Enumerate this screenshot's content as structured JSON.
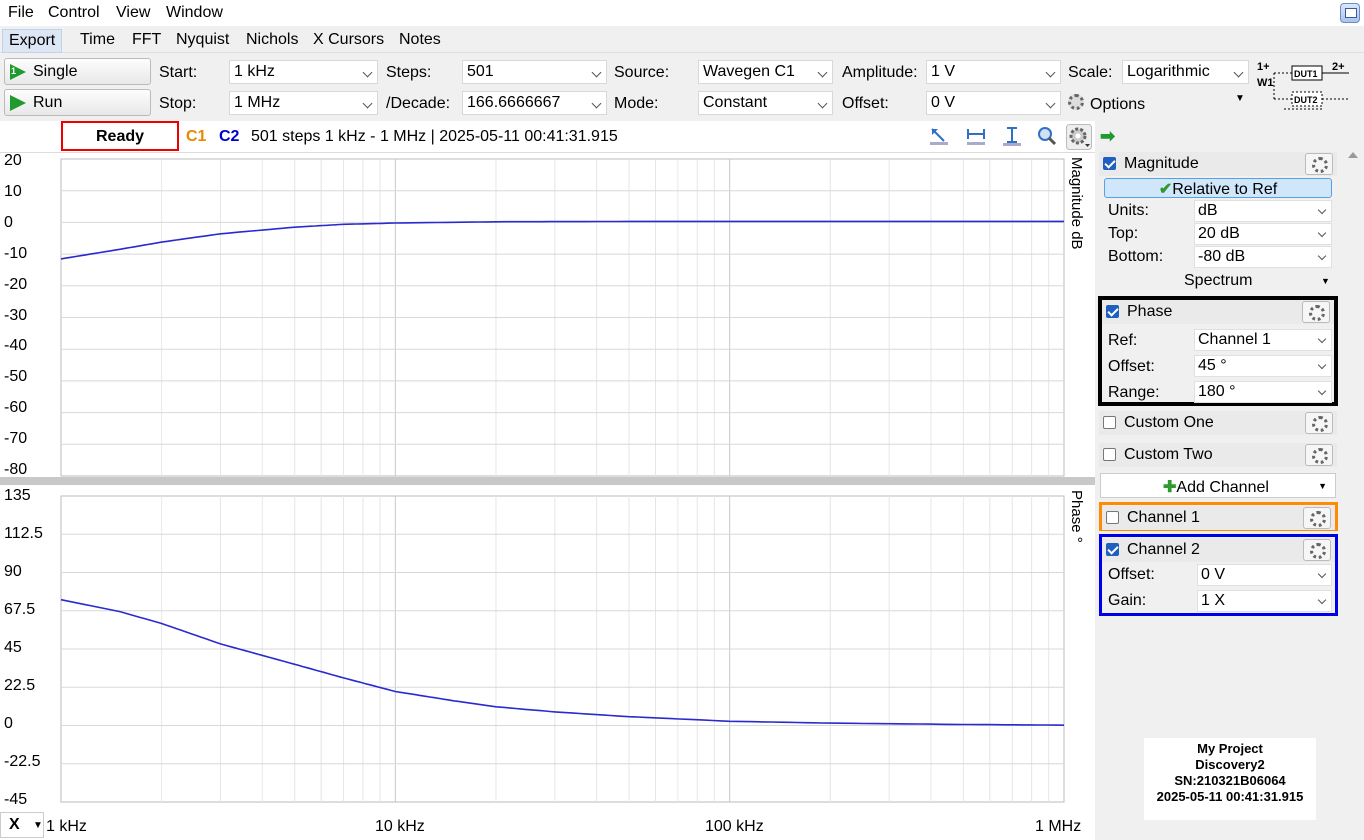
{
  "menubar": {
    "items": [
      "File",
      "Control",
      "View",
      "Window"
    ]
  },
  "tabs": [
    "Export",
    "Time",
    "FFT",
    "Nyquist",
    "Nichols",
    "X Cursors",
    "Notes"
  ],
  "toolbar": {
    "single_label": "Single",
    "run_label": "Run",
    "start_label": "Start:",
    "start_value": "1 kHz",
    "stop_label": "Stop:",
    "stop_value": "1 MHz",
    "steps_label": "Steps:",
    "steps_value": "501",
    "decade_label": "/Decade:",
    "decade_value": "166.6666667",
    "source_label": "Source:",
    "source_value": "Wavegen C1",
    "mode_label": "Mode:",
    "mode_value": "Constant",
    "amplitude_label": "Amplitude:",
    "amplitude_value": "1 V",
    "offset_label": "Offset:",
    "offset_value": "0 V",
    "scale_label": "Scale:",
    "scale_value": "Logarithmic",
    "options_label": "Options",
    "dut": {
      "in": "1+",
      "w": "W1",
      "out": "2+",
      "dut1": "DUT1",
      "dut2": "DUT2"
    }
  },
  "status": {
    "state": "Ready",
    "c1": "C1",
    "c2": "C2",
    "info": "501 steps  1 kHz - 1 MHz | 2025-05-11 00:41:31.915"
  },
  "magnitude_plot": {
    "ylabel": "Magnitude  dB",
    "yticks": [
      "20",
      "10",
      "0",
      "-10",
      "-20",
      "-30",
      "-40",
      "-50",
      "-60",
      "-70",
      "-80"
    ]
  },
  "phase_plot": {
    "ylabel": "Phase  °",
    "yticks": [
      "135",
      "112.5",
      "90",
      "67.5",
      "45",
      "22.5",
      "0",
      "-22.5",
      "-45"
    ]
  },
  "xaxis": {
    "selector": "X",
    "ticks": [
      "1 kHz",
      "10 kHz",
      "100 kHz",
      "1 MHz"
    ]
  },
  "chart_data": [
    {
      "type": "line",
      "xscale": "log",
      "x": [
        1000,
        1500,
        2000,
        3000,
        5000,
        7000,
        10000,
        20000,
        50000,
        100000,
        1000000
      ],
      "series": [
        {
          "values": [
            -11.5,
            -8.5,
            -6.2,
            -3.6,
            -1.5,
            -0.6,
            -0.2,
            0.2,
            0.3,
            0.3,
            0.3
          ]
        }
      ],
      "xlim": [
        1000,
        1000000
      ],
      "ylim": [
        -80,
        20
      ],
      "grid": true,
      "color": "#2a2acf"
    },
    {
      "type": "line",
      "xscale": "log",
      "x": [
        1000,
        1500,
        2000,
        3000,
        5000,
        7000,
        10000,
        15000,
        20000,
        30000,
        50000,
        100000,
        200000,
        500000,
        1000000
      ],
      "series": [
        {
          "values": [
            74,
            67,
            60,
            48,
            36,
            28,
            20,
            14.5,
            11,
            8,
            5.2,
            2.5,
            1.4,
            0.6,
            0.2
          ]
        }
      ],
      "xlim": [
        1000,
        1000000
      ],
      "ylim": [
        -45,
        135
      ],
      "grid": true,
      "color": "#2a2acf"
    }
  ],
  "panel": {
    "magnitude": {
      "title": "Magnitude",
      "relative_label": "Relative to Ref",
      "units_label": "Units:",
      "units_value": "dB",
      "top_label": "Top:",
      "top_value": "20 dB",
      "bottom_label": "Bottom:",
      "bottom_value": "-80 dB",
      "spectrum_label": "Spectrum"
    },
    "phase": {
      "title": "Phase",
      "ref_label": "Ref:",
      "ref_value": "Channel 1",
      "offset_label": "Offset:",
      "offset_value": "45 °",
      "range_label": "Range:",
      "range_value": "180 °"
    },
    "custom_one": "Custom One",
    "custom_two": "Custom Two",
    "add_channel": "Add Channel",
    "channel1": "Channel 1",
    "channel2": {
      "title": "Channel 2",
      "offset_label": "Offset:",
      "offset_value": "0 V",
      "gain_label": "Gain:",
      "gain_value": "1 X"
    },
    "colors": {
      "channel1": "#ff8c00",
      "channel2": "#0000e6",
      "phase": "#000000"
    }
  },
  "device": {
    "project": "My Project",
    "model": "Discovery2",
    "serial": "SN:210321B06064",
    "datetime": "2025-05-11 00:41:31.915"
  }
}
